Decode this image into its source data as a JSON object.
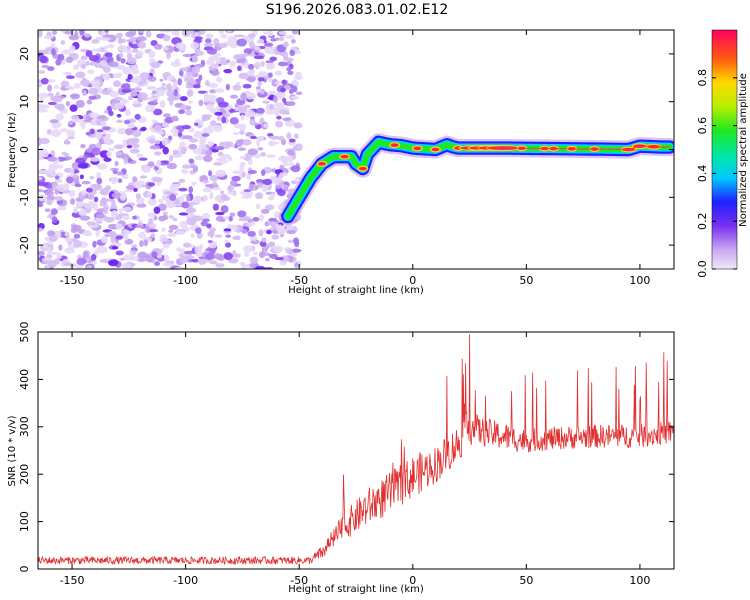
{
  "title": "S196.2026.083.01.02.E12",
  "chart_data": [
    {
      "type": "heatmap",
      "name": "spectrogram",
      "xlabel": "Height of straight line (km)",
      "ylabel": "Frequency (Hz)",
      "xlim": [
        -165,
        115
      ],
      "ylim": [
        -25,
        25
      ],
      "xticks": [
        -150,
        -100,
        -50,
        0,
        50,
        100
      ],
      "yticks": [
        -20,
        -10,
        0,
        10,
        20
      ],
      "colorbar": {
        "label": "Normalized spectral amplitude",
        "range": [
          0.0,
          1.0
        ],
        "ticks": [
          0.0,
          0.2,
          0.4,
          0.6,
          0.8
        ],
        "tick_labels": [
          "0.0",
          "0.2",
          "0.4",
          "0.6",
          "0.8"
        ]
      },
      "noise_region_x": [
        -165,
        -50
      ],
      "signal_ridge": {
        "x": [
          -55,
          -50,
          -45,
          -40,
          -35,
          -30,
          -27,
          -25,
          -22,
          -20,
          -15,
          -10,
          -5,
          0,
          10,
          15,
          18,
          20,
          25,
          40,
          60,
          80,
          95,
          100,
          110,
          113
        ],
        "y": [
          -14,
          -10,
          -6,
          -3,
          -1.5,
          -1.5,
          -1.5,
          -3,
          -4,
          -1,
          1.5,
          1,
          0.8,
          0.3,
          0,
          1,
          0.5,
          0.3,
          0.3,
          0.3,
          0.2,
          0.1,
          0.0,
          0.7,
          0.5,
          0.5
        ]
      }
    },
    {
      "type": "line",
      "name": "snr",
      "xlabel": "Height of straight line (km)",
      "ylabel": "SNR (10 * v/v)",
      "xlim": [
        -165,
        115
      ],
      "ylim": [
        0,
        500
      ],
      "xticks": [
        -150,
        -100,
        -50,
        0,
        50,
        100
      ],
      "yticks": [
        0,
        100,
        200,
        300,
        400,
        500
      ],
      "series": [
        {
          "name": "SNR",
          "color": "#e03030",
          "envelope": {
            "x": [
              -165,
              -45,
              -40,
              -30,
              -20,
              -10,
              0,
              10,
              20,
              25,
              30,
              40,
              50,
              60,
              80,
              100,
              115
            ],
            "mean": [
              18,
              18,
              35,
              90,
              130,
              160,
              195,
              220,
              265,
              300,
              290,
              280,
              270,
              275,
              280,
              280,
              290
            ],
            "noise": [
              8,
              8,
              15,
              30,
              40,
              45,
              45,
              40,
              40,
              40,
              30,
              30,
              25,
              25,
              25,
              25,
              25
            ]
          },
          "peak": {
            "x": 25,
            "y": 495
          }
        }
      ]
    }
  ]
}
